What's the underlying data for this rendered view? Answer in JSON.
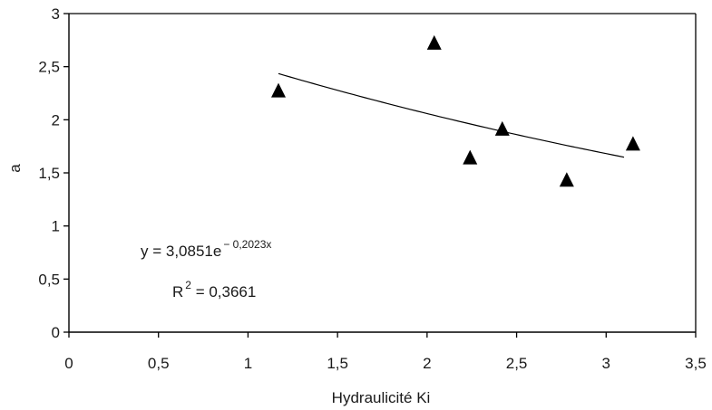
{
  "chart_data": {
    "type": "scatter",
    "title": "",
    "xlabel": "Hydraulicité Ki",
    "ylabel": "a",
    "xlim": [
      0,
      3.5
    ],
    "ylim": [
      0,
      3
    ],
    "x_ticks": [
      0,
      0.5,
      1,
      1.5,
      2,
      2.5,
      3,
      3.5
    ],
    "x_tick_labels": [
      "0",
      "0,5",
      "1",
      "1,5",
      "2",
      "2,5",
      "3",
      "3,5"
    ],
    "y_ticks": [
      0,
      0.5,
      1,
      1.5,
      2,
      2.5,
      3
    ],
    "y_tick_labels": [
      "0",
      "0,5",
      "1",
      "1,5",
      "2",
      "2,5",
      "3"
    ],
    "grid": false,
    "legend": "none",
    "marker": "triangle",
    "marker_color": "#000000",
    "series": [
      {
        "points": [
          {
            "x": 1.17,
            "y": 2.27
          },
          {
            "x": 2.04,
            "y": 2.72
          },
          {
            "x": 2.24,
            "y": 1.64
          },
          {
            "x": 2.42,
            "y": 1.91
          },
          {
            "x": 2.78,
            "y": 1.43
          },
          {
            "x": 3.15,
            "y": 1.77
          }
        ]
      }
    ],
    "trendline": {
      "type": "exponential",
      "a": 3.0851,
      "b": -0.2023,
      "x_range": [
        1.17,
        3.1
      ]
    },
    "annotations": {
      "equation_base": "y = 3,0851e",
      "equation_exponent": "− 0,2023x",
      "r2_base": "R",
      "r2_exponent": "2",
      "r2_value": " = 0,3661"
    }
  }
}
